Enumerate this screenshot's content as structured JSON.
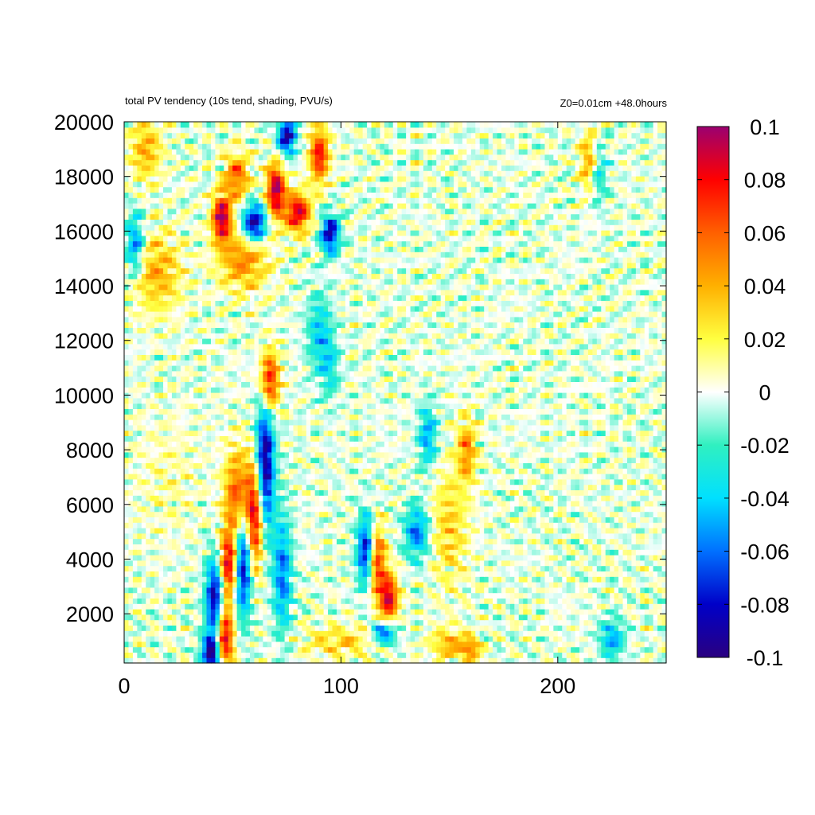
{
  "chart_data": {
    "type": "heatmap",
    "title": "total PV tendency (10s tend, shading, PVU/s)",
    "subtitle": "Z0=0.01cm   +48.0hours",
    "x_ticks": [
      0,
      100,
      200
    ],
    "y_ticks": [
      2000,
      4000,
      6000,
      8000,
      10000,
      12000,
      14000,
      16000,
      18000,
      20000
    ],
    "xlim": [
      0,
      250
    ],
    "ylim": [
      200,
      20000
    ],
    "colorbar": {
      "range": [
        -0.1,
        0.1
      ],
      "ticks": [
        "0.1",
        "0.08",
        "0.06",
        "0.04",
        "0.02",
        "0",
        "-0.02",
        "-0.04",
        "-0.06",
        "-0.08",
        "-0.1"
      ],
      "colors": [
        "#2a0080",
        "#0000c8",
        "#0070ff",
        "#00e0ff",
        "#30f0c0",
        "#ffffff",
        "#ffff40",
        "#ffb000",
        "#ff6000",
        "#ff0000",
        "#9b0070"
      ]
    },
    "features": [
      {
        "x": 45,
        "y": 16500,
        "value": 0.1,
        "sx": 3,
        "sy": 600
      },
      {
        "x": 60,
        "y": 16300,
        "value": -0.1,
        "sx": 4,
        "sy": 500
      },
      {
        "x": 70,
        "y": 17500,
        "value": 0.1,
        "sx": 3,
        "sy": 700
      },
      {
        "x": 80,
        "y": 16700,
        "value": 0.09,
        "sx": 4,
        "sy": 500
      },
      {
        "x": 90,
        "y": 18800,
        "value": 0.08,
        "sx": 3,
        "sy": 700
      },
      {
        "x": 95,
        "y": 15900,
        "value": -0.09,
        "sx": 3,
        "sy": 500
      },
      {
        "x": 75,
        "y": 19500,
        "value": -0.09,
        "sx": 3,
        "sy": 500
      },
      {
        "x": 52,
        "y": 18000,
        "value": 0.06,
        "sx": 4,
        "sy": 600
      },
      {
        "x": 65,
        "y": 7500,
        "value": -0.1,
        "sx": 3,
        "sy": 1800
      },
      {
        "x": 67,
        "y": 10500,
        "value": 0.09,
        "sx": 3,
        "sy": 800
      },
      {
        "x": 60,
        "y": 5500,
        "value": 0.1,
        "sx": 3,
        "sy": 1400
      },
      {
        "x": 55,
        "y": 4000,
        "value": -0.1,
        "sx": 3,
        "sy": 1400
      },
      {
        "x": 48,
        "y": 3800,
        "value": 0.09,
        "sx": 3,
        "sy": 800
      },
      {
        "x": 42,
        "y": 2500,
        "value": -0.1,
        "sx": 3,
        "sy": 1100
      },
      {
        "x": 46,
        "y": 1200,
        "value": 0.1,
        "sx": 3,
        "sy": 900
      },
      {
        "x": 40,
        "y": 500,
        "value": -0.1,
        "sx": 3,
        "sy": 500
      },
      {
        "x": 52,
        "y": 6200,
        "value": 0.07,
        "sx": 4,
        "sy": 1200
      },
      {
        "x": 73,
        "y": 3500,
        "value": -0.06,
        "sx": 3,
        "sy": 1500
      },
      {
        "x": 112,
        "y": 4300,
        "value": -0.1,
        "sx": 3,
        "sy": 900
      },
      {
        "x": 116,
        "y": 4000,
        "value": 0.09,
        "sx": 3,
        "sy": 900
      },
      {
        "x": 122,
        "y": 2600,
        "value": 0.09,
        "sx": 3,
        "sy": 600
      },
      {
        "x": 120,
        "y": 1300,
        "value": -0.07,
        "sx": 4,
        "sy": 300
      },
      {
        "x": 135,
        "y": 5000,
        "value": -0.06,
        "sx": 4,
        "sy": 700
      },
      {
        "x": 150,
        "y": 5200,
        "value": 0.03,
        "sx": 6,
        "sy": 1500
      },
      {
        "x": 158,
        "y": 8000,
        "value": 0.05,
        "sx": 3,
        "sy": 800
      },
      {
        "x": 140,
        "y": 8500,
        "value": -0.05,
        "sx": 3,
        "sy": 800
      },
      {
        "x": 15,
        "y": 14500,
        "value": 0.04,
        "sx": 8,
        "sy": 1000
      },
      {
        "x": 5,
        "y": 15500,
        "value": -0.06,
        "sx": 3,
        "sy": 800
      },
      {
        "x": 10,
        "y": 19000,
        "value": 0.04,
        "sx": 5,
        "sy": 800
      },
      {
        "x": 55,
        "y": 15000,
        "value": 0.05,
        "sx": 8,
        "sy": 800
      },
      {
        "x": 20,
        "y": 7000,
        "value": 0.01,
        "sx": 10,
        "sy": 1500
      },
      {
        "x": 215,
        "y": 18500,
        "value": 0.06,
        "sx": 3,
        "sy": 800
      },
      {
        "x": 218,
        "y": 18200,
        "value": -0.05,
        "sx": 3,
        "sy": 800
      },
      {
        "x": 225,
        "y": 1100,
        "value": -0.05,
        "sx": 4,
        "sy": 500
      },
      {
        "x": 150,
        "y": 900,
        "value": 0.04,
        "sx": 6,
        "sy": 400
      },
      {
        "x": 160,
        "y": 700,
        "value": 0.05,
        "sx": 3,
        "sy": 300
      },
      {
        "x": 100,
        "y": 1000,
        "value": 0.03,
        "sx": 12,
        "sy": 400
      },
      {
        "x": 90,
        "y": 12300,
        "value": -0.04,
        "sx": 4,
        "sy": 1000
      },
      {
        "x": 95,
        "y": 11000,
        "value": -0.03,
        "sx": 3,
        "sy": 800
      }
    ]
  }
}
